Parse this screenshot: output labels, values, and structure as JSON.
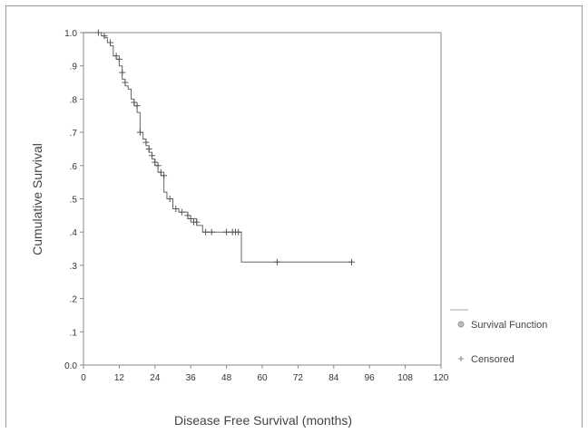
{
  "chart_data": {
    "type": "line",
    "xlabel": "Disease Free Survival (months)",
    "ylabel": "Cumulative Survival",
    "xlim": [
      0,
      120
    ],
    "ylim": [
      0,
      1
    ],
    "x_ticks": [
      0,
      12,
      24,
      36,
      48,
      60,
      72,
      84,
      96,
      108,
      120
    ],
    "x_tick_labels": [
      "0",
      "12",
      "24",
      "36",
      "48",
      "60",
      "72",
      "84",
      "96",
      "108",
      "120"
    ],
    "y_ticks": [
      0,
      0.1,
      0.2,
      0.3,
      0.4,
      0.5,
      0.6,
      0.7,
      0.8,
      0.9,
      1.0
    ],
    "y_tick_labels": [
      "0.0",
      ".1",
      ".2",
      ".3",
      ".4",
      ".5",
      ".6",
      ".7",
      ".8",
      ".9",
      "1.0"
    ],
    "grid": false,
    "legend": {
      "placement": "right",
      "entries": [
        {
          "label": "Survival Function",
          "marker": "line"
        },
        {
          "label": "Censored",
          "marker": "plus"
        }
      ]
    },
    "series": [
      {
        "name": "Survival Function",
        "type": "step",
        "color": "#666666",
        "x": [
          0,
          6,
          7,
          8,
          9,
          10,
          11,
          12,
          13,
          14,
          15,
          16,
          17,
          18,
          19,
          20,
          21,
          22,
          23,
          24,
          25,
          26,
          27,
          28,
          30,
          32,
          35,
          38,
          40,
          48,
          52,
          53,
          90
        ],
        "y": [
          1.0,
          0.99,
          0.985,
          0.97,
          0.96,
          0.93,
          0.92,
          0.9,
          0.86,
          0.84,
          0.83,
          0.8,
          0.78,
          0.76,
          0.7,
          0.68,
          0.66,
          0.64,
          0.62,
          0.6,
          0.58,
          0.57,
          0.52,
          0.5,
          0.47,
          0.46,
          0.44,
          0.42,
          0.4,
          0.4,
          0.4,
          0.31,
          0.31
        ]
      },
      {
        "name": "Censored",
        "type": "scatter",
        "marker": "plus",
        "color": "#666666",
        "x": [
          5,
          7,
          9,
          11,
          12,
          13,
          14,
          17,
          18,
          19,
          21,
          22,
          23,
          24,
          25,
          26,
          27,
          29,
          31,
          33,
          35,
          36,
          37,
          38,
          41,
          43,
          48,
          50,
          51,
          52,
          65,
          90
        ],
        "y": [
          1.0,
          0.99,
          0.97,
          0.93,
          0.92,
          0.88,
          0.85,
          0.79,
          0.78,
          0.7,
          0.67,
          0.65,
          0.63,
          0.61,
          0.6,
          0.58,
          0.57,
          0.5,
          0.47,
          0.46,
          0.45,
          0.44,
          0.43,
          0.43,
          0.4,
          0.4,
          0.4,
          0.4,
          0.4,
          0.4,
          0.31,
          0.31
        ]
      }
    ]
  }
}
